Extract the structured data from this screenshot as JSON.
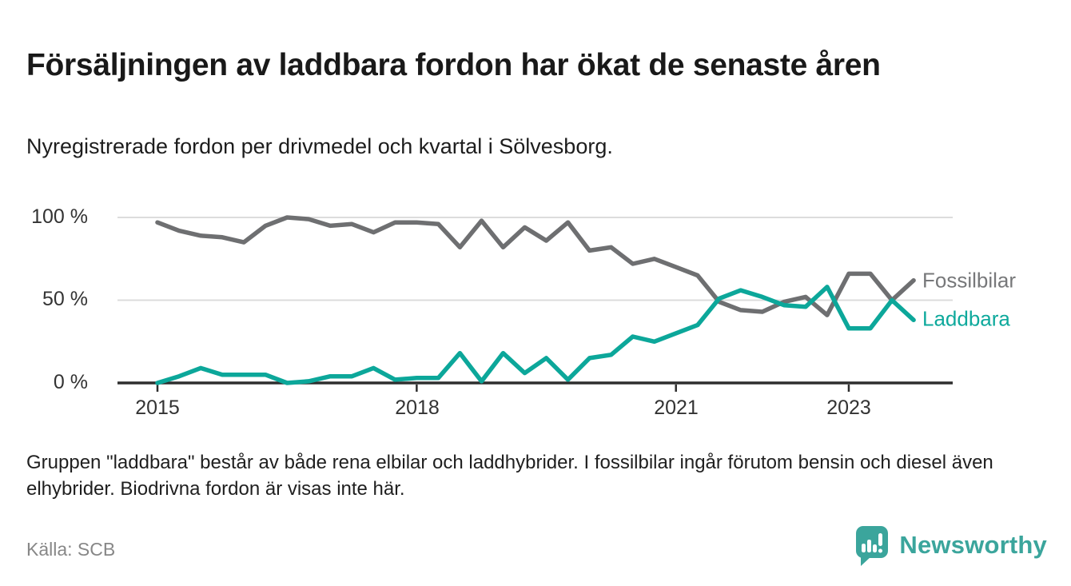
{
  "header": {
    "title": "Försäljningen av laddbara fordon har ökat de senaste åren",
    "subtitle": "Nyregistrerade fordon per drivmedel och kvartal i Sölvesborg."
  },
  "chart": {
    "y_ticks": [
      "100 %",
      "50 %",
      "0 %"
    ],
    "x_ticks": [
      "2015",
      "2018",
      "2021",
      "2023"
    ],
    "series_labels": {
      "fossil": "Fossilbilar",
      "laddbara": "Laddbara"
    },
    "colors": {
      "fossil_line": "#6e6f71",
      "laddbara_line": "#0ca79a",
      "gridline": "#dcdcdc",
      "axis": "#2e2e2e"
    }
  },
  "chart_data": {
    "type": "line",
    "title": "Försäljningen av laddbara fordon har ökat de senaste åren",
    "subtitle": "Nyregistrerade fordon per drivmedel och kvartal i Sölvesborg.",
    "x_unit": "quarter",
    "categories": [
      "2015Q1",
      "2015Q2",
      "2015Q3",
      "2015Q4",
      "2016Q1",
      "2016Q2",
      "2016Q3",
      "2016Q4",
      "2017Q1",
      "2017Q2",
      "2017Q3",
      "2017Q4",
      "2018Q1",
      "2018Q2",
      "2018Q3",
      "2018Q4",
      "2019Q1",
      "2019Q2",
      "2019Q3",
      "2019Q4",
      "2020Q1",
      "2020Q2",
      "2020Q3",
      "2020Q4",
      "2021Q1",
      "2021Q2",
      "2021Q3",
      "2021Q4",
      "2022Q1",
      "2022Q2",
      "2022Q3",
      "2022Q4",
      "2023Q1",
      "2023Q2",
      "2023Q3",
      "2023Q4"
    ],
    "series": [
      {
        "name": "Fossilbilar",
        "color": "#6e6f71",
        "values": [
          97,
          92,
          89,
          88,
          85,
          95,
          100,
          99,
          95,
          96,
          91,
          97,
          97,
          96,
          82,
          98,
          82,
          94,
          86,
          97,
          80,
          82,
          72,
          75,
          70,
          65,
          49,
          44,
          43,
          49,
          52,
          41,
          66,
          66,
          50,
          62
        ]
      },
      {
        "name": "Laddbara",
        "color": "#0ca79a",
        "values": [
          0,
          4,
          9,
          5,
          5,
          5,
          0,
          1,
          4,
          4,
          9,
          2,
          3,
          3,
          18,
          1,
          18,
          6,
          15,
          2,
          15,
          17,
          28,
          25,
          30,
          35,
          51,
          56,
          52,
          47,
          46,
          58,
          33,
          33,
          50,
          38
        ]
      }
    ],
    "ylabel": "",
    "xlabel": "",
    "ylim": [
      0,
      100
    ],
    "y_tick_values": [
      100,
      50,
      0
    ],
    "x_tick_years": [
      2015,
      2018,
      2021,
      2023
    ],
    "grid": "horizontal-only",
    "legend_position": "end-of-line-labels"
  },
  "footer": {
    "note": "Gruppen \"laddbara\" består av både rena elbilar och laddhybrider. I fossilbilar ingår förutom bensin och diesel även elhybrider. Biodrivna fordon är visas inte här.",
    "source": "Källa: SCB"
  },
  "logo": {
    "text": "Newsworthy"
  }
}
